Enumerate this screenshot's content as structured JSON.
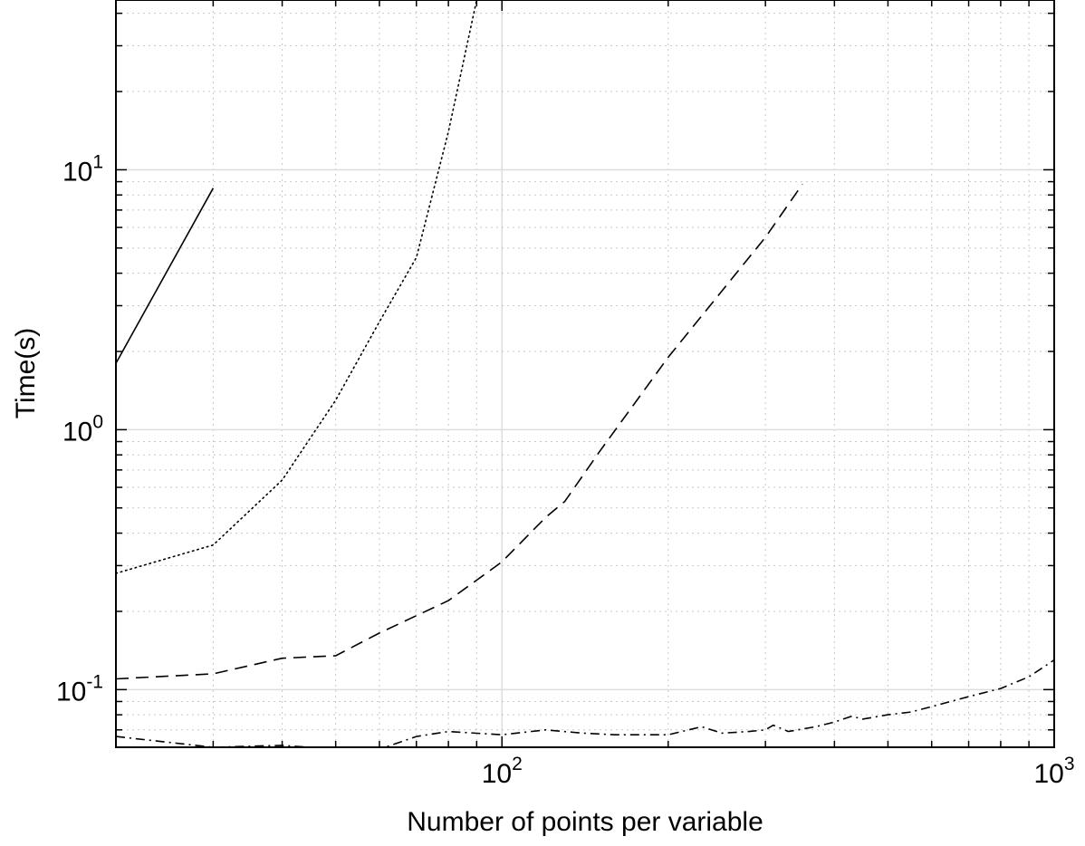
{
  "chart_data": {
    "type": "line",
    "title": "",
    "xlabel": "Number of points per variable",
    "ylabel": "Time(s)",
    "x_scale": "log",
    "y_scale": "log",
    "xlim": [
      20,
      1000
    ],
    "ylim": [
      0.06,
      45
    ],
    "grid": true,
    "x_ticks": [
      {
        "value": 100,
        "base": "10",
        "exp": "2"
      },
      {
        "value": 1000,
        "base": "10",
        "exp": "3"
      }
    ],
    "y_ticks": [
      {
        "value": 0.1,
        "base": "10",
        "exp": "-1"
      },
      {
        "value": 1,
        "base": "10",
        "exp": "0"
      },
      {
        "value": 10,
        "base": "10",
        "exp": "1"
      }
    ],
    "series": [
      {
        "style": "solid",
        "x": [
          20,
          30
        ],
        "y": [
          1.8,
          8.5
        ]
      },
      {
        "style": "dotted",
        "x": [
          20,
          30,
          40,
          50,
          60,
          70,
          80,
          90
        ],
        "y": [
          0.28,
          0.36,
          0.64,
          1.3,
          2.6,
          4.6,
          14,
          45
        ]
      },
      {
        "style": "dashed",
        "x": [
          20,
          30,
          40,
          50,
          60,
          80,
          100,
          120,
          130,
          150,
          200,
          300,
          350
        ],
        "y": [
          0.11,
          0.115,
          0.132,
          0.135,
          0.165,
          0.22,
          0.31,
          0.46,
          0.53,
          0.82,
          1.9,
          5.5,
          8.8
        ]
      },
      {
        "style": "dashdot",
        "x": [
          20,
          30,
          40,
          50,
          60,
          70,
          80,
          100,
          120,
          140,
          160,
          200,
          230,
          250,
          280,
          300,
          310,
          330,
          370,
          400,
          430,
          450,
          500,
          550,
          600,
          700,
          800,
          900,
          1000
        ],
        "y": [
          0.066,
          0.06,
          0.061,
          0.059,
          0.059,
          0.066,
          0.069,
          0.067,
          0.07,
          0.068,
          0.067,
          0.067,
          0.072,
          0.068,
          0.069,
          0.07,
          0.073,
          0.069,
          0.072,
          0.075,
          0.079,
          0.077,
          0.08,
          0.082,
          0.086,
          0.094,
          0.101,
          0.112,
          0.13
        ]
      }
    ]
  }
}
